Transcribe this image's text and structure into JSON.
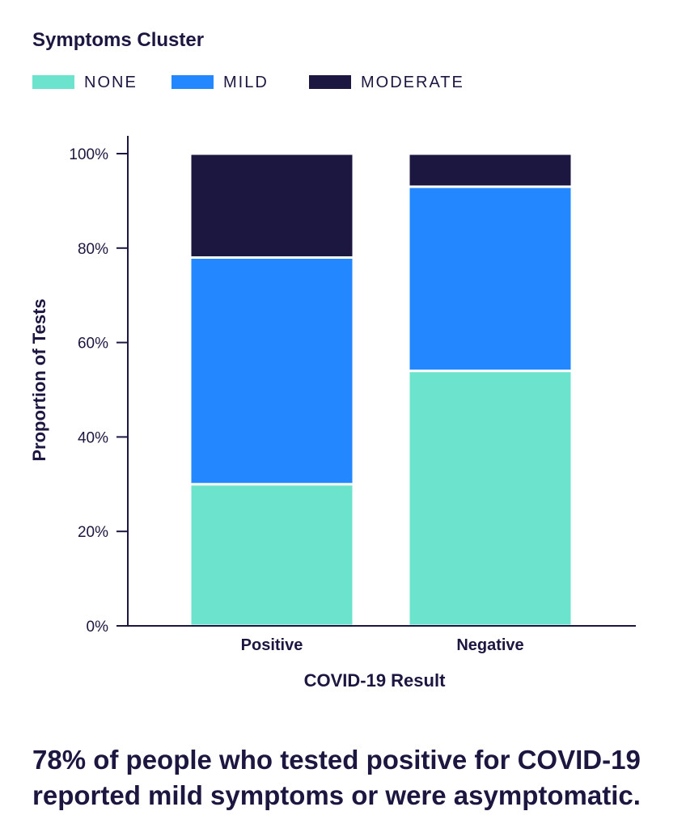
{
  "legend": {
    "title": "Symptoms Cluster",
    "items": [
      {
        "label": "NONE",
        "color": "#6ce3cc"
      },
      {
        "label": "MILD",
        "color": "#2387ff"
      },
      {
        "label": "MODERATE",
        "color": "#1b1740"
      }
    ]
  },
  "chart_data": {
    "type": "bar",
    "stacked": true,
    "categories": [
      "Positive",
      "Negative"
    ],
    "series": [
      {
        "name": "NONE",
        "values": [
          30,
          54
        ]
      },
      {
        "name": "MILD",
        "values": [
          48,
          39
        ]
      },
      {
        "name": "MODERATE",
        "values": [
          22,
          7
        ]
      }
    ],
    "xlabel": "COVID-19 Result",
    "ylabel": "Proportion of Tests",
    "ylim": [
      0,
      100
    ],
    "yticks": [
      "0%",
      "20%",
      "40%",
      "60%",
      "80%",
      "100%"
    ],
    "grid": false,
    "legend_position": "top-left"
  },
  "footnote": "78% of people who tested positive for COVID-19 reported mild symptoms or were asymptomatic."
}
